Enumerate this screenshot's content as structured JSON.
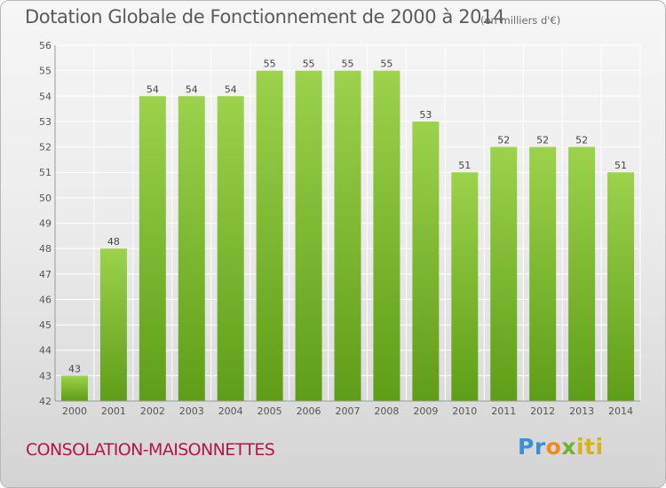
{
  "header": {
    "title": "Dotation Globale de Fonctionnement de 2000 à 2014",
    "subtitle": "(en milliers d'€)"
  },
  "footer": {
    "commune": "CONSOLATION-MAISONNETTES",
    "brand_parts": [
      "Pr",
      "o",
      "x",
      "iti"
    ]
  },
  "colors": {
    "bar_top": "#9cd24c",
    "bar_bottom": "#5e9e16",
    "grid": "#ffffff",
    "brand_blue": "#3a8fd6",
    "brand_orange": "#f08a1d",
    "brand_green": "#6bb52e",
    "brand_yellow": "#d8b21a"
  },
  "chart_data": {
    "type": "bar",
    "categories": [
      "2000",
      "2001",
      "2002",
      "2003",
      "2004",
      "2005",
      "2006",
      "2007",
      "2008",
      "2009",
      "2010",
      "2011",
      "2012",
      "2013",
      "2014"
    ],
    "values": [
      43,
      48,
      54,
      54,
      54,
      55,
      55,
      55,
      55,
      53,
      51,
      52,
      52,
      52,
      51
    ],
    "title": "Dotation Globale de Fonctionnement de 2000 à 2014",
    "subtitle": "(en milliers d'€)",
    "xlabel": "",
    "ylabel": "",
    "ylim": [
      42,
      56
    ],
    "yticks": [
      42,
      43,
      44,
      45,
      46,
      47,
      48,
      49,
      50,
      51,
      52,
      53,
      54,
      55,
      56
    ],
    "grid": true,
    "legend": "none"
  }
}
